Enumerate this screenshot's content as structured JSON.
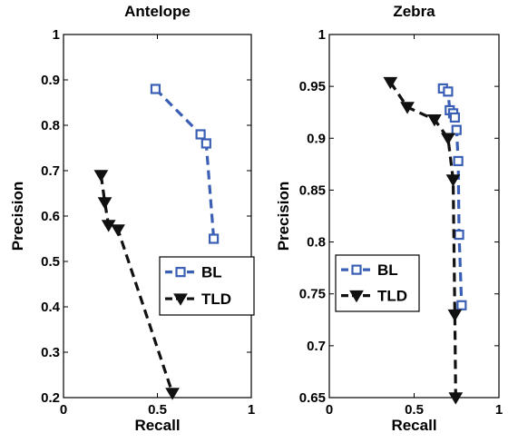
{
  "chart_data": [
    {
      "type": "line",
      "title": "Antelope",
      "xlabel": "Recall",
      "ylabel": "Precision",
      "xlim": [
        0,
        1
      ],
      "ylim": [
        0.2,
        1
      ],
      "xticks": [
        0,
        0.5,
        1
      ],
      "xtick_labels": [
        "0",
        "0.5",
        "1"
      ],
      "yticks": [
        0.2,
        0.3,
        0.4,
        0.5,
        0.6,
        0.7,
        0.8,
        0.9,
        1
      ],
      "ytick_labels": [
        "0.2",
        "0.3",
        "0.4",
        "0.5",
        "0.6",
        "0.7",
        "0.8",
        "0.9",
        "1"
      ],
      "grid": false,
      "legend_position": "bottom-right",
      "series": [
        {
          "name": "BL",
          "color": "#3a5fb5",
          "marker": "square",
          "style": "dashed",
          "points": [
            [
              0.49,
              0.88
            ],
            [
              0.73,
              0.78
            ],
            [
              0.76,
              0.76
            ],
            [
              0.8,
              0.55
            ]
          ]
        },
        {
          "name": "TLD",
          "color": "#111111",
          "marker": "triangle-down",
          "style": "dashed",
          "points": [
            [
              0.2,
              0.69
            ],
            [
              0.22,
              0.63
            ],
            [
              0.24,
              0.58
            ],
            [
              0.29,
              0.57
            ],
            [
              0.58,
              0.21
            ]
          ]
        }
      ]
    },
    {
      "type": "line",
      "title": "Zebra",
      "xlabel": "Recall",
      "ylabel": "Precision",
      "xlim": [
        0,
        1
      ],
      "ylim": [
        0.65,
        1
      ],
      "xticks": [
        0,
        0.5,
        1
      ],
      "xtick_labels": [
        "0",
        "0.5",
        "1"
      ],
      "yticks": [
        0.65,
        0.7,
        0.75,
        0.8,
        0.85,
        0.9,
        0.95,
        1
      ],
      "ytick_labels": [
        "0.65",
        "0.7",
        "0.75",
        "0.8",
        "0.85",
        "0.9",
        "0.95",
        "1"
      ],
      "grid": false,
      "legend_position": "bottom-right",
      "series": [
        {
          "name": "BL",
          "color": "#3a5fb5",
          "marker": "square",
          "style": "dashed",
          "points": [
            [
              0.67,
              0.948
            ],
            [
              0.7,
              0.945
            ],
            [
              0.71,
              0.927
            ],
            [
              0.73,
              0.924
            ],
            [
              0.74,
              0.92
            ],
            [
              0.75,
              0.908
            ],
            [
              0.76,
              0.878
            ],
            [
              0.765,
              0.807
            ],
            [
              0.78,
              0.739
            ]
          ]
        },
        {
          "name": "TLD",
          "color": "#111111",
          "marker": "triangle-down",
          "style": "dashed",
          "points": [
            [
              0.36,
              0.954
            ],
            [
              0.46,
              0.93
            ],
            [
              0.62,
              0.918
            ],
            [
              0.7,
              0.9
            ],
            [
              0.73,
              0.86
            ],
            [
              0.74,
              0.73
            ],
            [
              0.745,
              0.65
            ]
          ]
        }
      ]
    }
  ]
}
